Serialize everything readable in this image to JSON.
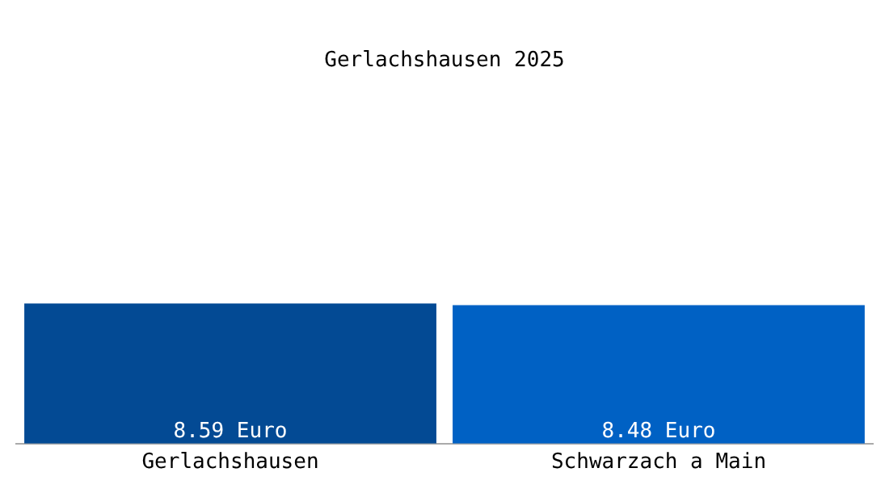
{
  "chart_data": {
    "type": "bar",
    "title": "Gerlachshausen 2025",
    "categories": [
      "Gerlachshausen",
      "Schwarzach a Main"
    ],
    "values": [
      8.59,
      8.48
    ],
    "colors": [
      "#034a94",
      "#0061c4"
    ],
    "value_labels": [
      "8.59 Euro",
      "8.48 Euro"
    ],
    "grid": false,
    "legend": false
  }
}
